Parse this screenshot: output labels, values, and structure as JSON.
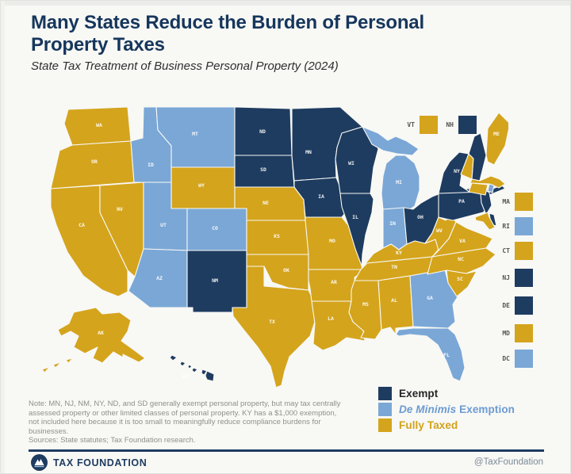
{
  "header": {
    "title_line1": "Many States Reduce the Burden of Personal",
    "title_line2": "Property Taxes",
    "subtitle": "State Tax Treatment of Business Personal Property (2024)"
  },
  "colors": {
    "exempt": "#1e3c60",
    "de_minimis": "#7aa7d6",
    "fully_taxed": "#d4a41c",
    "map_label": "#ffffff",
    "side_label": "#555550",
    "legend_exempt_text": "#252525",
    "legend_de_minimis_text": "#6b9bd2",
    "legend_fully_taxed_text": "#d2a21a",
    "title": "#16365c",
    "rule": "#1e3c60"
  },
  "legend": {
    "exempt_label": "Exempt",
    "de_minimis_italic": "De Minimis",
    "de_minimis_rest": " Exemption",
    "fully_taxed_label": "Fully Taxed"
  },
  "map": {
    "side_top": [
      "VT",
      "NH"
    ],
    "side_right": [
      "MA",
      "RI",
      "CT",
      "NJ",
      "DE",
      "MD",
      "DC"
    ]
  },
  "chart_data": {
    "type": "heatmap",
    "subtype": "us-choropleth-map",
    "title": "Many States Reduce the Burden of Personal Property Taxes",
    "subtitle": "State Tax Treatment of Business Personal Property (2024)",
    "legend_entries": [
      "Exempt",
      "De Minimis Exemption",
      "Fully Taxed"
    ],
    "states": {
      "WA": "fully_taxed",
      "OR": "fully_taxed",
      "CA": "fully_taxed",
      "NV": "fully_taxed",
      "ID": "de_minimis",
      "MT": "de_minimis",
      "WY": "fully_taxed",
      "UT": "de_minimis",
      "CO": "de_minimis",
      "AZ": "de_minimis",
      "NM": "exempt",
      "ND": "exempt",
      "SD": "exempt",
      "NE": "fully_taxed",
      "KS": "fully_taxed",
      "OK": "fully_taxed",
      "TX": "fully_taxed",
      "MN": "exempt",
      "IA": "exempt",
      "MO": "fully_taxed",
      "AR": "fully_taxed",
      "LA": "fully_taxed",
      "WI": "exempt",
      "IL": "exempt",
      "MI": "de_minimis",
      "IN": "de_minimis",
      "OH": "exempt",
      "KY": "fully_taxed",
      "TN": "fully_taxed",
      "MS": "fully_taxed",
      "AL": "fully_taxed",
      "GA": "de_minimis",
      "FL": "de_minimis",
      "SC": "fully_taxed",
      "NC": "fully_taxed",
      "VA": "fully_taxed",
      "WV": "fully_taxed",
      "PA": "exempt",
      "NY": "exempt",
      "NJ": "exempt",
      "VT": "fully_taxed",
      "NH": "exempt",
      "ME": "fully_taxed",
      "MA": "fully_taxed",
      "RI": "de_minimis",
      "CT": "fully_taxed",
      "DE": "exempt",
      "MD": "fully_taxed",
      "DC": "de_minimis",
      "AK": "fully_taxed",
      "HI": "exempt"
    }
  },
  "note": {
    "text": "Note: MN, NJ, NM, NY, ND, and SD generally exempt personal property, but may tax centrally assessed property or other limited classes of personal property. KY has a $1,000 exemption, not included here because it is too small to meaningfully reduce compliance burdens for businesses.",
    "sources": "Sources: State statutes; Tax Foundation research."
  },
  "footer": {
    "brand": "TAX FOUNDATION",
    "handle": "@TaxFoundation"
  }
}
